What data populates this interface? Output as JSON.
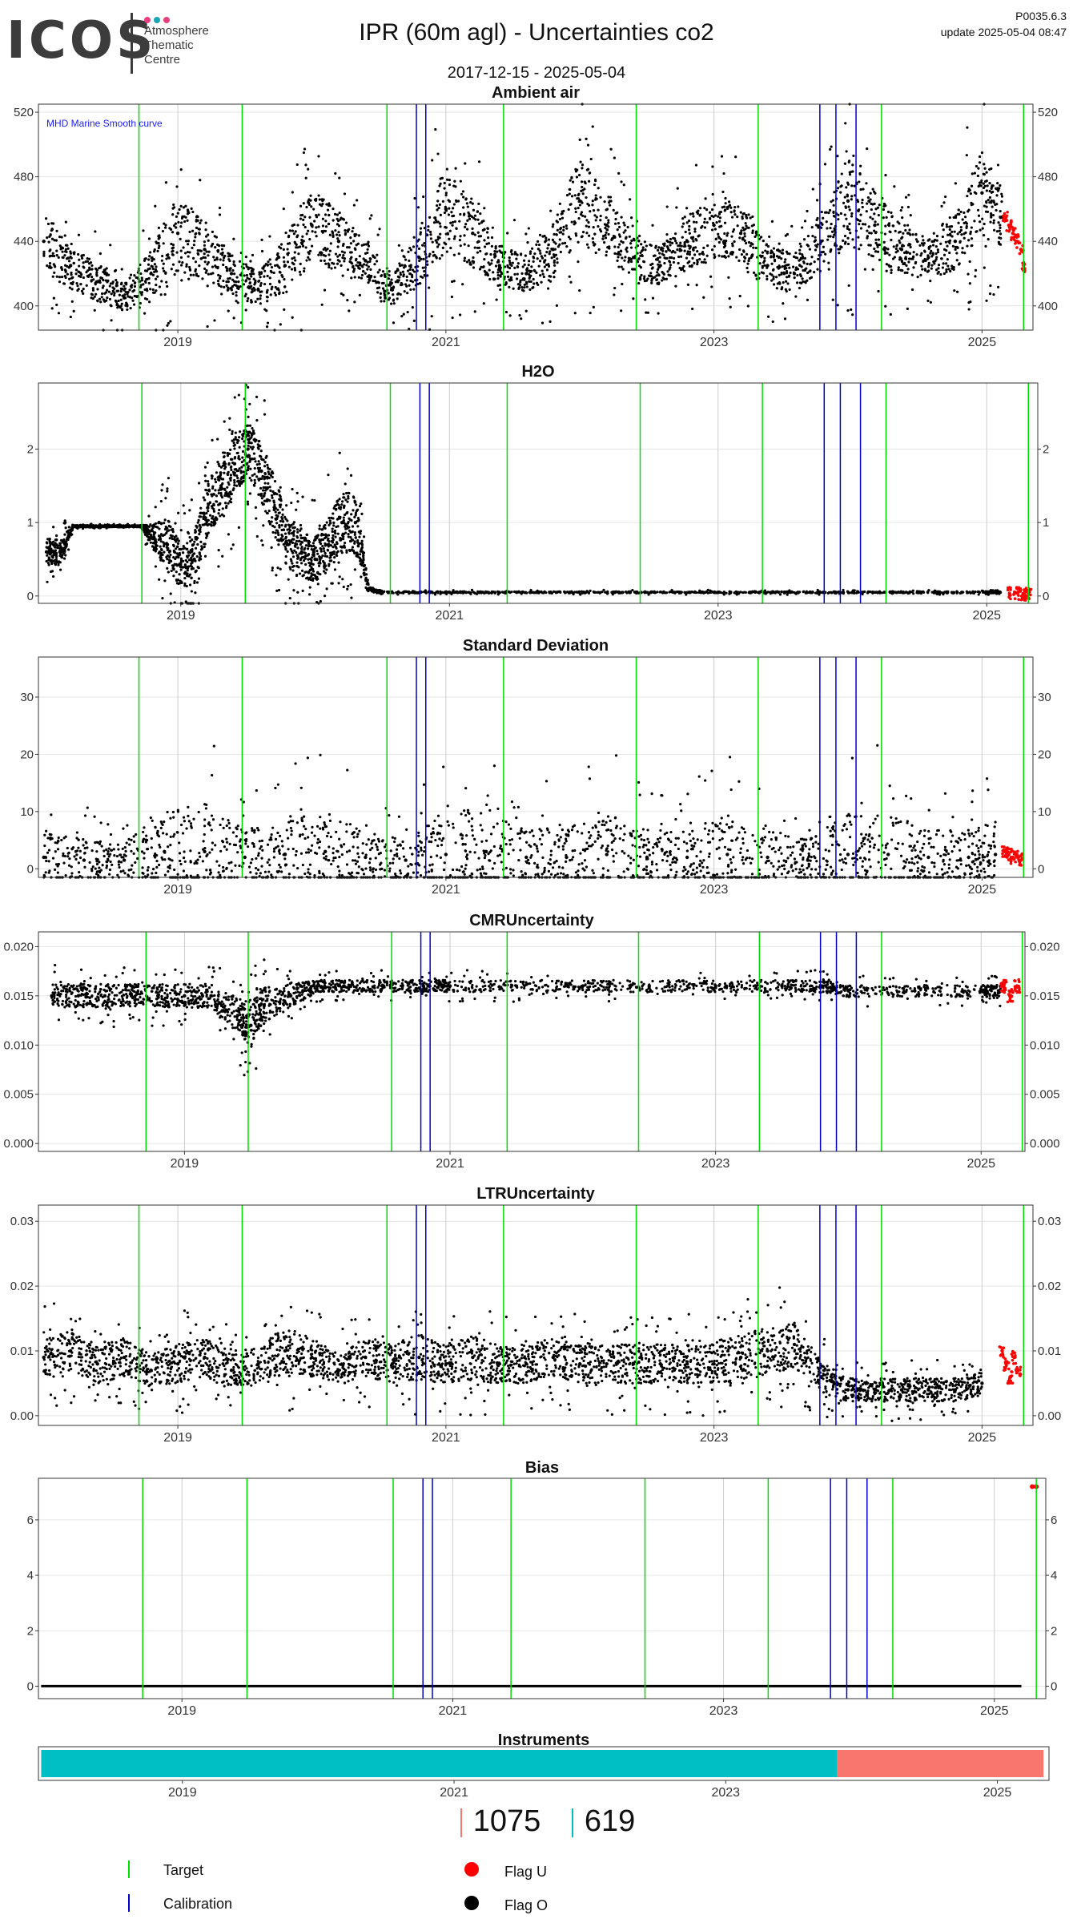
{
  "header": {
    "logo_text": "ICOS",
    "logo_subtitle": [
      "Atmosphere",
      "Thematic",
      "Centre"
    ],
    "logo_dot_colors": [
      "#e8407e",
      "#1aa6b7",
      "#e8407e"
    ],
    "title": "IPR  (60m agl) - Uncertainties co2",
    "date_range": "2017-12-15 - 2025-05-04",
    "version": "P0035.6.3",
    "update": "update  2025-05-04 08:47"
  },
  "colors": {
    "target": "#00dd00",
    "calibration": "#0000cc",
    "flag_u": "#ff0000",
    "flag_o": "#000000",
    "instrument_1": "#00bfc4",
    "instrument_2": "#f8766d"
  },
  "markers": {
    "target_dates": [
      2018.71,
      2019.48,
      2020.56,
      2021.43,
      2022.42,
      2023.33,
      2024.25,
      2025.31
    ],
    "calibration_dates": [
      2020.78,
      2020.85,
      2023.79,
      2023.91,
      2024.06
    ]
  },
  "chart_data": [
    {
      "type": "scatter",
      "title": "Ambient air",
      "annotation": "MHD Marine Smooth curve",
      "xlim": [
        2017.96,
        2025.38
      ],
      "ylim": [
        385,
        525
      ],
      "yticks": [
        400,
        440,
        480,
        520
      ],
      "ytick_labels": [
        "400",
        "440",
        "480",
        "520"
      ],
      "xticks": [
        2019,
        2021,
        2023,
        2025
      ],
      "xtick_labels": [
        "2019",
        "2021",
        "2023",
        "2025"
      ],
      "grid": true,
      "series": [
        {
          "color": "#000000",
          "x": [
            2018.0,
            2018.2,
            2018.4,
            2018.6,
            2018.8,
            2019.0,
            2019.2,
            2019.4,
            2019.6,
            2019.8,
            2020.0,
            2020.2,
            2020.4,
            2020.6,
            2020.8,
            2021.0,
            2021.2,
            2021.4,
            2021.6,
            2021.8,
            2022.0,
            2022.2,
            2022.4,
            2022.6,
            2022.8,
            2023.0,
            2023.2,
            2023.4,
            2023.6,
            2023.8,
            2024.0,
            2024.2,
            2024.4,
            2024.6,
            2024.8,
            2025.0,
            2025.15
          ],
          "y": [
            440,
            425,
            415,
            405,
            420,
            445,
            435,
            420,
            410,
            425,
            450,
            440,
            428,
            410,
            430,
            460,
            445,
            425,
            420,
            435,
            465,
            450,
            430,
            425,
            440,
            450,
            445,
            425,
            420,
            440,
            465,
            450,
            435,
            430,
            440,
            470,
            455
          ],
          "spread": [
            30,
            25,
            20,
            15,
            25,
            40,
            30,
            20,
            18,
            28,
            40,
            30,
            22,
            15,
            30,
            45,
            35,
            22,
            20,
            30,
            45,
            35,
            22,
            20,
            30,
            35,
            30,
            22,
            20,
            30,
            45,
            35,
            25,
            22,
            30,
            45,
            30
          ]
        },
        {
          "name": "Flag U",
          "color": "#ff0000",
          "x": [
            2025.17,
            2025.2,
            2025.23,
            2025.26,
            2025.29,
            2025.31
          ],
          "y": [
            455,
            450,
            445,
            440,
            435,
            425
          ]
        }
      ]
    },
    {
      "type": "scatter",
      "title": "H2O",
      "xlim": [
        2017.94,
        2025.38
      ],
      "ylim": [
        -0.1,
        2.9
      ],
      "yticks": [
        0,
        1,
        2
      ],
      "ytick_labels": [
        "0",
        "1",
        "2"
      ],
      "xticks": [
        2019,
        2021,
        2023,
        2025
      ],
      "xtick_labels": [
        "2019",
        "2021",
        "2023",
        "2025"
      ],
      "grid": true,
      "series": [
        {
          "color": "#000000",
          "x": [
            2018.0,
            2018.1,
            2018.2,
            2018.3,
            2018.4,
            2018.5,
            2018.6,
            2018.7,
            2018.8,
            2018.9,
            2019.0,
            2019.1,
            2019.2,
            2019.3,
            2019.4,
            2019.5,
            2019.6,
            2019.7,
            2019.8,
            2019.9,
            2020.0,
            2020.1,
            2020.2,
            2020.3,
            2020.4,
            2020.5,
            2021.0,
            2021.5,
            2022.0,
            2022.5,
            2023.0,
            2023.5,
            2024.0,
            2024.5,
            2025.0,
            2025.1
          ],
          "y": [
            0.6,
            0.6,
            0.95,
            0.95,
            0.95,
            0.95,
            0.95,
            0.95,
            0.8,
            0.7,
            0.4,
            0.5,
            1.2,
            1.5,
            1.8,
            2.0,
            1.7,
            1.2,
            0.7,
            0.6,
            0.5,
            0.7,
            1.0,
            1.0,
            0.1,
            0.05,
            0.05,
            0.05,
            0.05,
            0.05,
            0.05,
            0.05,
            0.05,
            0.05,
            0.05,
            0.05
          ],
          "spread": [
            0.3,
            0.3,
            0.02,
            0.02,
            0.02,
            0.02,
            0.02,
            0.02,
            0.3,
            0.6,
            0.5,
            0.6,
            0.6,
            0.7,
            0.7,
            0.6,
            0.7,
            0.7,
            0.6,
            0.6,
            0.5,
            0.6,
            0.7,
            0.7,
            0.02,
            0.02,
            0.02,
            0.02,
            0.02,
            0.02,
            0.02,
            0.02,
            0.02,
            0.02,
            0.02,
            0.02
          ]
        },
        {
          "name": "Flag U",
          "color": "#ff0000",
          "x": [
            2025.17,
            2025.22,
            2025.27,
            2025.31
          ],
          "y": [
            0.03,
            0.04,
            0.03,
            0.04
          ]
        }
      ]
    },
    {
      "type": "scatter",
      "title": "Standard Deviation",
      "xlim": [
        2017.96,
        2025.38
      ],
      "ylim": [
        -1.5,
        37
      ],
      "yticks": [
        0,
        10,
        20,
        30
      ],
      "ytick_labels": [
        "0",
        "10",
        "20",
        "30"
      ],
      "xticks": [
        2019,
        2021,
        2023,
        2025
      ],
      "xtick_labels": [
        "2019",
        "2021",
        "2023",
        "2025"
      ],
      "grid": true,
      "series": [
        {
          "color": "#000000",
          "x": [
            2018.0,
            2018.3,
            2018.6,
            2018.9,
            2019.2,
            2019.5,
            2019.8,
            2020.1,
            2020.4,
            2020.7,
            2021.0,
            2021.3,
            2021.6,
            2021.9,
            2022.2,
            2022.5,
            2022.8,
            2023.1,
            2023.4,
            2023.7,
            2024.0,
            2024.3,
            2024.6,
            2024.9,
            2025.1
          ],
          "y": [
            2,
            1.5,
            1.5,
            3,
            3,
            2,
            2.5,
            3,
            2,
            1.5,
            2.5,
            3,
            2,
            2,
            2.5,
            2,
            2,
            2.5,
            2,
            1.5,
            2.5,
            2.5,
            2,
            2,
            2.5
          ],
          "spread": [
            8,
            6,
            5,
            12,
            14,
            8,
            10,
            12,
            8,
            6,
            12,
            14,
            8,
            9,
            12,
            8,
            8,
            12,
            8,
            6,
            12,
            12,
            8,
            8,
            10
          ]
        },
        {
          "name": "Flag U",
          "color": "#ff0000",
          "x": [
            2025.17,
            2025.2,
            2025.23,
            2025.26,
            2025.29
          ],
          "y": [
            3,
            2.5,
            2,
            2.5,
            1.5
          ]
        }
      ]
    },
    {
      "type": "scatter",
      "title": "CMRUncertainty",
      "xlim": [
        2017.9,
        2025.33
      ],
      "ylim": [
        -0.0008,
        0.0215
      ],
      "yticks": [
        0.0,
        0.005,
        0.01,
        0.015,
        0.02
      ],
      "ytick_labels": [
        "0.000",
        "0.005",
        "0.010",
        "0.015",
        "0.020"
      ],
      "xticks": [
        2019,
        2021,
        2023,
        2025
      ],
      "xtick_labels": [
        "2019",
        "2021",
        "2023",
        "2025"
      ],
      "grid": true,
      "series": [
        {
          "color": "#000000",
          "x": [
            2018.0,
            2018.2,
            2018.4,
            2018.6,
            2018.8,
            2019.0,
            2019.2,
            2019.4,
            2019.5,
            2019.6,
            2019.8,
            2020.0,
            2020.2,
            2020.5,
            2020.8,
            2021.0,
            2021.5,
            2022.0,
            2022.5,
            2023.0,
            2023.5,
            2023.8,
            2024.0,
            2024.5,
            2025.0,
            2025.15
          ],
          "y": [
            0.015,
            0.015,
            0.015,
            0.015,
            0.015,
            0.015,
            0.015,
            0.013,
            0.012,
            0.014,
            0.015,
            0.016,
            0.016,
            0.016,
            0.016,
            0.016,
            0.016,
            0.016,
            0.016,
            0.016,
            0.016,
            0.016,
            0.0155,
            0.0155,
            0.0155,
            0.0155
          ],
          "spread": [
            0.002,
            0.002,
            0.002,
            0.002,
            0.002,
            0.002,
            0.002,
            0.003,
            0.004,
            0.003,
            0.002,
            0.001,
            0.001,
            0.001,
            0.001,
            0.001,
            0.001,
            0.001,
            0.001,
            0.001,
            0.001,
            0.001,
            0.001,
            0.001,
            0.001,
            0.001
          ]
        },
        {
          "name": "Flag U",
          "color": "#ff0000",
          "x": [
            2025.17,
            2025.22,
            2025.27
          ],
          "y": [
            0.016,
            0.015,
            0.016
          ]
        }
      ]
    },
    {
      "type": "scatter",
      "title": "LTRUncertainty",
      "xlim": [
        2017.96,
        2025.38
      ],
      "ylim": [
        -0.0015,
        0.0325
      ],
      "yticks": [
        0.0,
        0.01,
        0.02,
        0.03
      ],
      "ytick_labels": [
        "0.00",
        "0.01",
        "0.02",
        "0.03"
      ],
      "xticks": [
        2019,
        2021,
        2023,
        2025
      ],
      "xtick_labels": [
        "2019",
        "2021",
        "2023",
        "2025"
      ],
      "grid": true,
      "series": [
        {
          "color": "#000000",
          "x": [
            2018.0,
            2018.2,
            2018.4,
            2018.6,
            2018.8,
            2019.0,
            2019.2,
            2019.4,
            2019.6,
            2019.8,
            2020.0,
            2020.2,
            2020.4,
            2020.6,
            2020.8,
            2021.0,
            2021.2,
            2021.4,
            2021.6,
            2021.8,
            2022.0,
            2022.2,
            2022.4,
            2022.6,
            2022.8,
            2023.0,
            2023.2,
            2023.4,
            2023.6,
            2023.8,
            2024.0,
            2024.2,
            2024.4,
            2024.6,
            2024.8,
            2025.0
          ],
          "y": [
            0.009,
            0.01,
            0.008,
            0.009,
            0.007,
            0.008,
            0.009,
            0.007,
            0.008,
            0.01,
            0.009,
            0.007,
            0.009,
            0.008,
            0.009,
            0.008,
            0.009,
            0.008,
            0.008,
            0.009,
            0.008,
            0.008,
            0.008,
            0.008,
            0.008,
            0.008,
            0.009,
            0.01,
            0.011,
            0.006,
            0.004,
            0.004,
            0.004,
            0.004,
            0.004,
            0.005
          ],
          "spread": [
            0.005,
            0.005,
            0.005,
            0.005,
            0.004,
            0.005,
            0.005,
            0.004,
            0.005,
            0.006,
            0.005,
            0.004,
            0.005,
            0.005,
            0.006,
            0.005,
            0.006,
            0.005,
            0.005,
            0.005,
            0.005,
            0.005,
            0.005,
            0.005,
            0.005,
            0.005,
            0.006,
            0.006,
            0.006,
            0.004,
            0.003,
            0.003,
            0.003,
            0.003,
            0.003,
            0.003
          ]
        },
        {
          "name": "Flag U",
          "color": "#ff0000",
          "x": [
            2025.15,
            2025.18,
            2025.21,
            2025.24,
            2025.27
          ],
          "y": [
            0.01,
            0.008,
            0.006,
            0.009,
            0.007
          ]
        }
      ]
    },
    {
      "type": "line",
      "title": "Bias",
      "xlim": [
        2017.94,
        2025.38
      ],
      "ylim": [
        -0.45,
        7.5
      ],
      "yticks": [
        0,
        2,
        4,
        6
      ],
      "ytick_labels": [
        "0",
        "2",
        "4",
        "6"
      ],
      "xticks": [
        2019,
        2021,
        2023,
        2025
      ],
      "xtick_labels": [
        "2019",
        "2021",
        "2023",
        "2025"
      ],
      "grid": true,
      "series": [
        {
          "color": "#000000",
          "x": [
            2017.96,
            2018.5,
            2019.0,
            2019.5,
            2020.0,
            2020.5,
            2021.0,
            2021.5,
            2022.0,
            2022.5,
            2023.0,
            2023.5,
            2024.0,
            2024.5,
            2025.0,
            2025.2
          ],
          "y": [
            0.0,
            0.0,
            0.0,
            0.0,
            0.0,
            0.0,
            0.0,
            0.0,
            0.0,
            0.0,
            0.0,
            0.0,
            0.0,
            0.0,
            0.0,
            0.0
          ]
        },
        {
          "name": "Flag U",
          "color": "#ff0000",
          "x": [
            2025.28,
            2025.31
          ],
          "y": [
            7.2,
            7.2
          ]
        }
      ]
    },
    {
      "type": "bar",
      "title": "Instruments",
      "xlim": [
        2017.94,
        2025.38
      ],
      "xticks": [
        2019,
        2021,
        2023,
        2025
      ],
      "xtick_labels": [
        "2019",
        "2021",
        "2023",
        "2025"
      ],
      "segments": [
        {
          "label": "619",
          "start": 2017.96,
          "end": 2023.82,
          "color": "#00bfc4"
        },
        {
          "label": "1075",
          "start": 2023.82,
          "end": 2025.34,
          "color": "#f8766d"
        }
      ]
    }
  ],
  "instrument_counts": [
    {
      "label": "1075",
      "color": "#f8766d"
    },
    {
      "label": "619",
      "color": "#00bfc4"
    }
  ],
  "legend": {
    "target": "Target",
    "calibration": "Calibration",
    "flag_u": "Flag U",
    "flag_o": "Flag O"
  }
}
